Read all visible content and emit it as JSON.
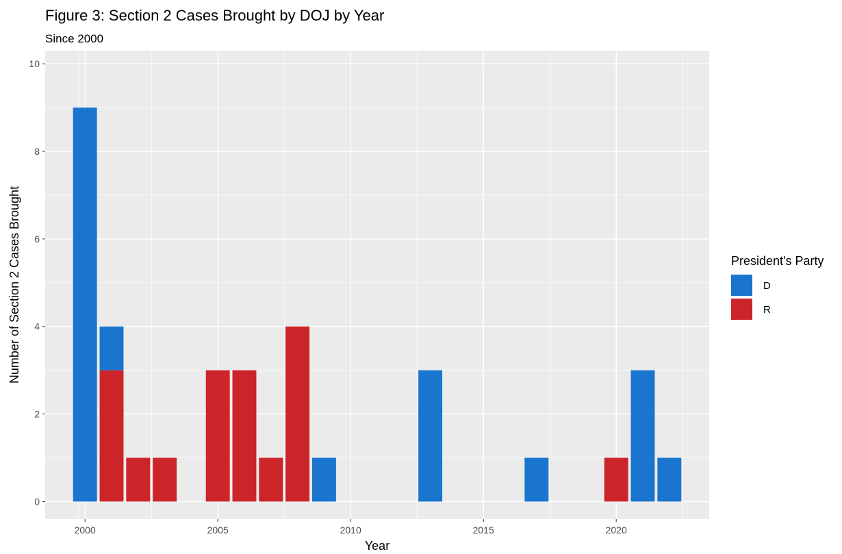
{
  "chart_data": {
    "type": "bar",
    "stacked": true,
    "title": "Figure 3: Section 2 Cases Brought by DOJ by Year",
    "subtitle": "Since 2000",
    "xlabel": "Year",
    "ylabel": "Number of Section 2 Cases Brought",
    "xlim": [
      1998.5,
      2023.5
    ],
    "ylim": [
      -0.4,
      10.3
    ],
    "x_ticks": [
      2000,
      2005,
      2010,
      2015,
      2020
    ],
    "y_ticks": [
      0,
      2,
      4,
      6,
      8,
      10
    ],
    "grid": true,
    "legend": {
      "title": "President's Party",
      "position": "right"
    },
    "series": [
      {
        "name": "D",
        "color": "#1a75cf",
        "points": [
          [
            2000,
            9
          ],
          [
            2001,
            1
          ],
          [
            2009,
            1
          ],
          [
            2013,
            3
          ],
          [
            2017,
            1
          ],
          [
            2021,
            3
          ],
          [
            2022,
            1
          ]
        ]
      },
      {
        "name": "R",
        "color": "#cc2529",
        "points": [
          [
            2001,
            3
          ],
          [
            2002,
            1
          ],
          [
            2003,
            1
          ],
          [
            2005,
            3
          ],
          [
            2006,
            3
          ],
          [
            2007,
            1
          ],
          [
            2008,
            4
          ],
          [
            2020,
            1
          ]
        ]
      }
    ]
  }
}
